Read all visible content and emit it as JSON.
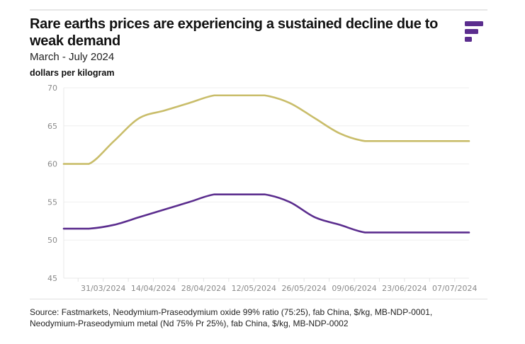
{
  "header": {
    "title": "Rare earths prices are experiencing a sustained decline due to weak demand",
    "subtitle": "March - July 2024",
    "unit_label": "dollars per kilogram",
    "logo_icon": "fastmarkets-logo-icon"
  },
  "colors": {
    "oxide_series": "#c9bd6a",
    "metal_series": "#5b2d8e",
    "grid": "#efefef",
    "axis_text": "#8a8a8a",
    "logo": "#5b2d8e"
  },
  "footer": {
    "source_line1": "Source: Fastmarkets, Neodymium-Praseodymium oxide 99% ratio (75:25), fab China, $/kg, MB-NDP-0001,",
    "source_line2": "Neodymium-Praseodymium metal (Nd 75% Pr 25%), fab China, $/kg, MB-NDP-0002"
  },
  "chart_data": {
    "type": "line",
    "title": "Rare earths prices are experiencing a sustained decline due to weak demand",
    "subtitle": "March - July 2024",
    "xlabel": "",
    "ylabel": "dollars per kilogram",
    "ylim": [
      45,
      70
    ],
    "yticks": [
      45,
      50,
      55,
      60,
      65,
      70
    ],
    "xlim": [
      "2024-03-20",
      "2024-07-11"
    ],
    "xtick_labels": [
      "31/03/2024",
      "14/04/2024",
      "28/04/2024",
      "12/05/2024",
      "26/05/2024",
      "09/06/2024",
      "23/06/2024",
      "07/07/2024"
    ],
    "xtick_dates": [
      "2024-03-31",
      "2024-04-14",
      "2024-04-28",
      "2024-05-12",
      "2024-05-26",
      "2024-06-09",
      "2024-06-23",
      "2024-07-07"
    ],
    "grid": true,
    "legend": "none",
    "x": [
      "2024-03-20",
      "2024-03-27",
      "2024-04-03",
      "2024-04-10",
      "2024-04-17",
      "2024-04-24",
      "2024-05-01",
      "2024-05-08",
      "2024-05-15",
      "2024-05-22",
      "2024-05-29",
      "2024-06-05",
      "2024-06-12",
      "2024-06-19",
      "2024-06-26",
      "2024-07-03",
      "2024-07-11"
    ],
    "series": [
      {
        "name": "Neodymium-Praseodymium oxide 99% ratio (75:25), fab China",
        "color": "#c9bd6a",
        "values": [
          60,
          60,
          63,
          66,
          67,
          68,
          69,
          69,
          69,
          68,
          66,
          64,
          63,
          63,
          63,
          63,
          63
        ]
      },
      {
        "name": "Neodymium-Praseodymium metal (Nd 75% Pr 25%), fab China",
        "color": "#5b2d8e",
        "values": [
          51.5,
          51.5,
          52,
          53,
          54,
          55,
          56,
          56,
          56,
          55,
          53,
          52,
          51,
          51,
          51,
          51,
          51
        ]
      }
    ]
  }
}
